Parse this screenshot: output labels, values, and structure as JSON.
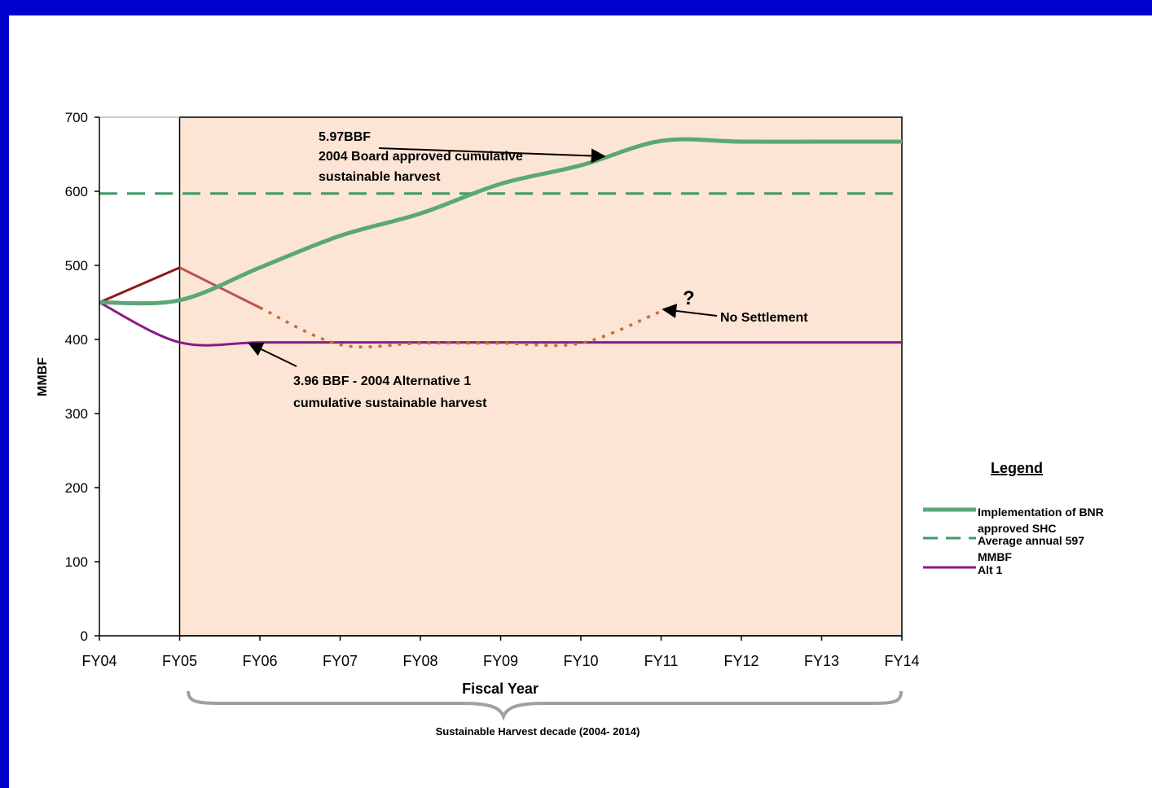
{
  "colors": {
    "frame": "#0000cc",
    "plot_background": "#fce5d4",
    "bnr_line": "#5aa778",
    "average_line": "#3c9a66",
    "alt1_line": "#8a1a8a",
    "early_red": "#8b1a1a",
    "red_solid": "#c0504d",
    "no_settlement_dotted": "#c0703a",
    "brace": "#a0a0a0"
  },
  "chart_data": {
    "type": "line",
    "title": "",
    "xlabel": "Fiscal Year",
    "ylabel": "MMBF",
    "categories": [
      "FY04",
      "FY05",
      "FY06",
      "FY07",
      "FY08",
      "FY09",
      "FY10",
      "FY11",
      "FY12",
      "FY13",
      "FY14"
    ],
    "ylim": [
      0,
      700
    ],
    "yticks": [
      0,
      100,
      200,
      300,
      400,
      500,
      600,
      700
    ],
    "shaded_region": {
      "from": "FY05",
      "to": "FY14"
    },
    "series": [
      {
        "name": "Implementation of BNR approved SHC",
        "x": [
          0,
          1,
          2,
          3,
          4,
          5,
          6,
          7,
          8,
          9,
          10
        ],
        "values": [
          450,
          453,
          497,
          540,
          570,
          610,
          635,
          668,
          667,
          667,
          667
        ]
      },
      {
        "name": "Average annual 597 MMBF",
        "x": [
          0,
          10
        ],
        "values": [
          597,
          597
        ]
      },
      {
        "name": "Alt 1",
        "x": [
          0,
          1,
          2,
          3,
          4,
          5,
          6,
          7,
          8,
          9,
          10
        ],
        "values": [
          450,
          396,
          396,
          396,
          396,
          396,
          396,
          396,
          396,
          396,
          396
        ]
      },
      {
        "name": "",
        "x": [
          0,
          1
        ],
        "values": [
          450,
          497
        ]
      },
      {
        "name": "",
        "x": [
          1,
          2
        ],
        "values": [
          497,
          443
        ]
      },
      {
        "name": "",
        "x": [
          2,
          3,
          4,
          5,
          6,
          7
        ],
        "values": [
          443,
          393,
          395,
          395,
          395,
          438
        ]
      }
    ],
    "annotations": {
      "bnr": {
        "line1": "5.97BBF",
        "line2": "2004 Board approved cumulative",
        "line3": "sustainable harvest"
      },
      "alt1": {
        "line1": "3.96 BBF - 2004 Alternative 1",
        "line2": "cumulative sustainable harvest"
      },
      "question": "?",
      "no_settlement": "No Settlement"
    },
    "decade_label": "Sustainable Harvest decade (2004- 2014)",
    "legend": {
      "title": "Legend",
      "position": "right",
      "items": [
        {
          "line1": "Implementation of BNR",
          "line2": "approved SHC",
          "style": "solid-thick",
          "color": "#5aa778"
        },
        {
          "line1": "Average annual 597",
          "line2": "MMBF",
          "style": "dashed",
          "color": "#3c9a66"
        },
        {
          "line1": "Alt 1",
          "line2": "",
          "style": "solid",
          "color": "#8a1a8a"
        }
      ]
    }
  }
}
